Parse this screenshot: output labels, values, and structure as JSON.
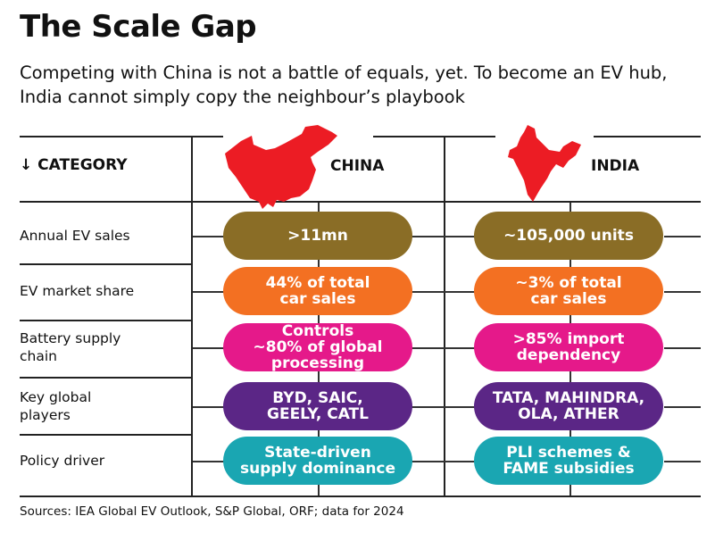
{
  "title": "The Scale Gap",
  "subtitle": "Competing with China is not a battle of equals, yet. To become an EV hub, India cannot simply copy the neighbour’s playbook",
  "header": {
    "category_arrow": "↓",
    "category": "CATEGORY",
    "china": "CHINA",
    "india": "INDIA"
  },
  "rows": [
    {
      "category": "Annual EV sales",
      "china": ">11mn",
      "india": "~105,000 units",
      "color": "#8a6d26"
    },
    {
      "category": "EV market share",
      "china": "44% of total\ncar sales",
      "india": "~3% of total\ncar sales",
      "color": "#f37022"
    },
    {
      "category": "Battery supply\nchain",
      "china": "Controls\n~80% of global\nprocessing",
      "india": ">85% import\ndependency",
      "color": "#e5198a"
    },
    {
      "category": "Key global\nplayers",
      "china": "BYD, SAIC,\nGEELY, CATL",
      "india": "TATA, MAHINDRA,\nOLA, ATHER",
      "color": "#5b2686"
    },
    {
      "category": "Policy driver",
      "china": "State-driven\nsupply dominance",
      "india": "PLI schemes &\nFAME subsidies",
      "color": "#1aa6b2"
    }
  ],
  "sources": "Sources: IEA Global EV Outlook, S&P Global, ORF; data for 2024",
  "map_color": "#ec1c24"
}
